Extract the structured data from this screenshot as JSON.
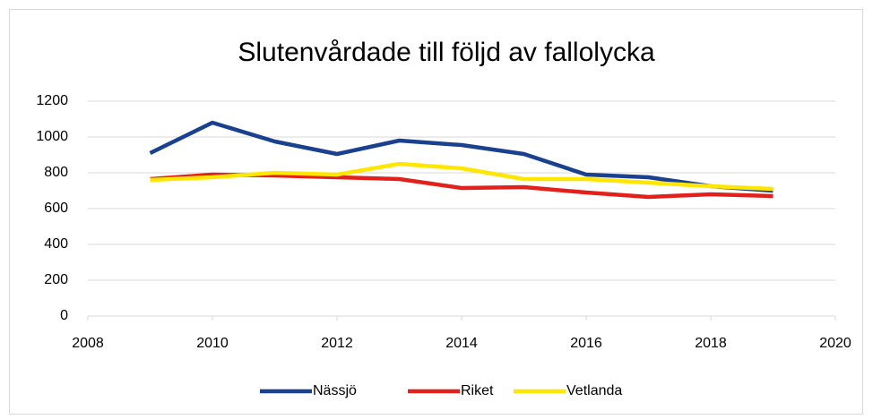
{
  "chart_data": {
    "type": "line",
    "title": "Slutenvårdade till följd av fallolycka",
    "x": [
      2009,
      2010,
      2011,
      2012,
      2013,
      2014,
      2015,
      2016,
      2017,
      2018,
      2019
    ],
    "series": [
      {
        "name": "Nässjö",
        "color": "#1a4190",
        "values": [
          910,
          1080,
          975,
          905,
          980,
          955,
          905,
          790,
          775,
          725,
          700
        ]
      },
      {
        "name": "Riket",
        "color": "#e3211c",
        "values": [
          765,
          790,
          785,
          775,
          765,
          715,
          720,
          690,
          665,
          680,
          670
        ]
      },
      {
        "name": "Vetlanda",
        "color": "#ffe600",
        "values": [
          760,
          775,
          800,
          790,
          850,
          825,
          765,
          765,
          745,
          725,
          710
        ]
      }
    ],
    "xlim": [
      2008,
      2020
    ],
    "xticks": [
      2008,
      2010,
      2012,
      2014,
      2016,
      2018,
      2020
    ],
    "ylim": [
      0,
      1200
    ],
    "yticks": [
      0,
      200,
      400,
      600,
      800,
      1000,
      1200
    ],
    "grid": true,
    "legend": "bottom"
  }
}
